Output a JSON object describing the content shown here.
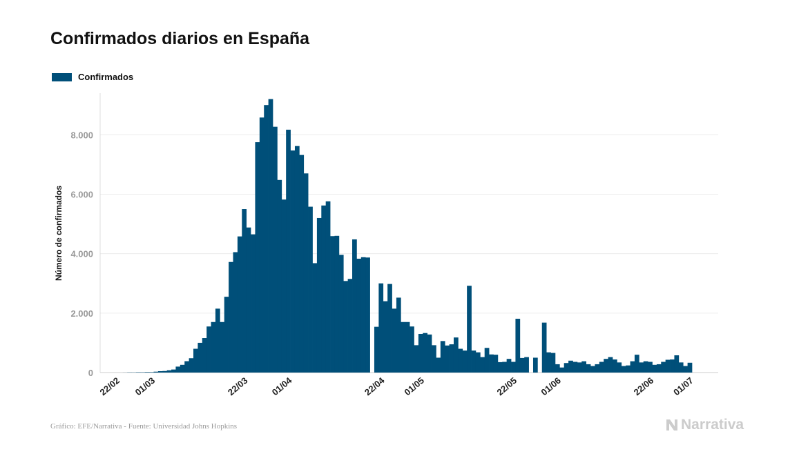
{
  "title": "Confirmados diarios en España",
  "legend": {
    "label": "Confirmados",
    "color": "#004f79"
  },
  "source": "Gráfico: EFE/Narrativa - Fuente: Universidad Johns Hopkins",
  "brand": {
    "name": "Narrativa",
    "icon": "narrativa-logo-icon"
  },
  "chart_data": {
    "type": "bar",
    "title": "Confirmados diarios en España",
    "xlabel": "",
    "ylabel": "Número de confirmados",
    "ylim": [
      0,
      9400
    ],
    "yticks": [
      0,
      2000,
      4000,
      6000,
      8000
    ],
    "ytick_labels": [
      "0",
      "2.000",
      "4.000",
      "6.000",
      "8.000"
    ],
    "grid": true,
    "legend_position": "top-left",
    "start_date": "2020-02-22",
    "xticks": [
      {
        "index": 0,
        "label": "22/02"
      },
      {
        "index": 8,
        "label": "01/03"
      },
      {
        "index": 29,
        "label": "22/03"
      },
      {
        "index": 39,
        "label": "01/04"
      },
      {
        "index": 60,
        "label": "22/04"
      },
      {
        "index": 69,
        "label": "01/05"
      },
      {
        "index": 90,
        "label": "22/05"
      },
      {
        "index": 100,
        "label": "01/06"
      },
      {
        "index": 121,
        "label": "22/06"
      },
      {
        "index": 130,
        "label": "01/07"
      }
    ],
    "series": [
      {
        "name": "Confirmados",
        "color": "#004f79",
        "values": [
          0,
          0,
          2,
          7,
          6,
          12,
          11,
          17,
          15,
          30,
          46,
          52,
          77,
          102,
          200,
          260,
          382,
          482,
          800,
          1000,
          1160,
          1550,
          1700,
          2150,
          1700,
          2550,
          3720,
          4050,
          4580,
          5500,
          4880,
          4650,
          7750,
          8580,
          9000,
          9200,
          8270,
          6480,
          5820,
          8170,
          7470,
          7620,
          7320,
          6700,
          5580,
          3680,
          5200,
          5620,
          5760,
          4590,
          4600,
          3960,
          3080,
          3150,
          4480,
          3830,
          3880,
          3870,
          0,
          1540,
          3000,
          2400,
          2980,
          2150,
          2520,
          1700,
          1700,
          1550,
          920,
          1300,
          1330,
          1280,
          920,
          500,
          1060,
          910,
          950,
          1180,
          800,
          740,
          2920,
          740,
          680,
          520,
          830,
          610,
          600,
          350,
          360,
          460,
          360,
          1810,
          490,
          520,
          0,
          500,
          0,
          1680,
          680,
          660,
          280,
          170,
          320,
          400,
          360,
          340,
          380,
          280,
          220,
          280,
          360,
          460,
          520,
          440,
          340,
          220,
          240,
          380,
          600,
          340,
          380,
          360,
          260,
          280,
          360,
          430,
          440,
          580,
          340,
          220,
          330
        ]
      }
    ]
  }
}
